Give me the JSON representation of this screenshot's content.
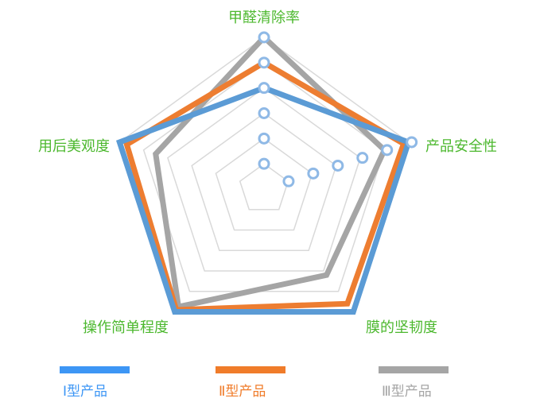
{
  "chart_data": {
    "type": "radar",
    "title": "",
    "categories": [
      "甲醛清除率",
      "产品安全性",
      "膜的坚韧度",
      "操作简单程度",
      "用后美观度"
    ],
    "rlim": [
      0,
      6
    ],
    "rings": 6,
    "grid": true,
    "legend_position": "bottom",
    "series": [
      {
        "name": "Ⅰ型产品",
        "color": "#5b9bd5",
        "legend_color": "#3d96f5",
        "values": [
          4,
          6,
          6,
          6,
          6
        ]
      },
      {
        "name": "Ⅱ型产品",
        "color": "#ed7d31",
        "legend_color": "#f07c2a",
        "values": [
          5,
          5.8,
          5.6,
          5.9,
          5.7
        ]
      },
      {
        "name": "Ⅲ型产品",
        "color": "#a5a5a5",
        "legend_color": "#a5a5a5",
        "values": [
          6,
          5,
          4.2,
          5.75,
          4.5
        ]
      }
    ],
    "label_color": "#4cb82e",
    "marker_color": "#8fb9e6"
  }
}
